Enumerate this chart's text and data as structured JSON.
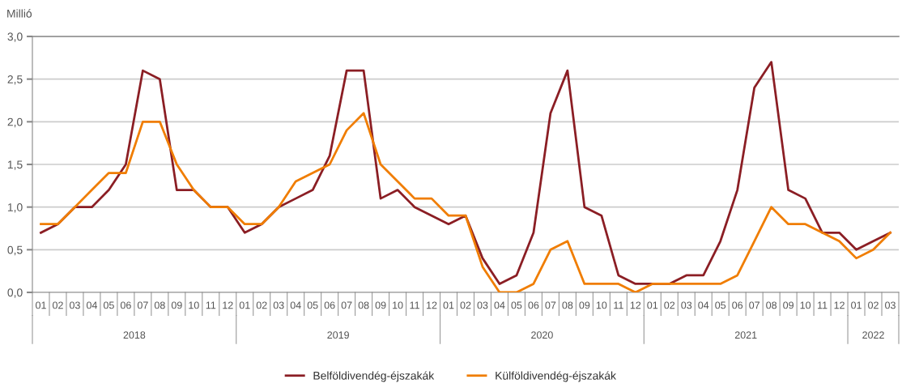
{
  "chart_data": {
    "type": "line",
    "ylabel": "Millió",
    "categories": [
      "01",
      "02",
      "03",
      "04",
      "05",
      "06",
      "07",
      "08",
      "09",
      "10",
      "11",
      "12",
      "01",
      "02",
      "03",
      "04",
      "05",
      "06",
      "07",
      "08",
      "09",
      "10",
      "11",
      "12",
      "01",
      "02",
      "03",
      "04",
      "05",
      "06",
      "07",
      "08",
      "09",
      "10",
      "11",
      "12",
      "01",
      "02",
      "03",
      "04",
      "05",
      "06",
      "07",
      "08",
      "09",
      "10",
      "11",
      "12",
      "01",
      "02",
      "03"
    ],
    "annotations": [
      "2018",
      "2019",
      "2020",
      "2021",
      "2022"
    ],
    "series": [
      {
        "name": "Belföldivendég-éjszakák",
        "color": "#8b1e24",
        "values": [
          0.7,
          0.8,
          1.0,
          1.0,
          1.2,
          1.5,
          2.6,
          2.5,
          1.2,
          1.2,
          1.0,
          1.0,
          0.7,
          0.8,
          1.0,
          1.1,
          1.2,
          1.6,
          2.6,
          2.6,
          1.1,
          1.2,
          1.0,
          0.9,
          0.8,
          0.9,
          0.4,
          0.1,
          0.2,
          0.7,
          2.1,
          2.6,
          1.0,
          0.9,
          0.2,
          0.1,
          0.1,
          0.1,
          0.2,
          0.2,
          0.6,
          1.2,
          2.4,
          2.7,
          1.2,
          1.1,
          0.7,
          0.7,
          0.5,
          0.6,
          0.7
        ]
      },
      {
        "name": "Külföldivendég-éjszakák",
        "color": "#f07d00",
        "values": [
          0.8,
          0.8,
          1.0,
          1.2,
          1.4,
          1.4,
          2.0,
          2.0,
          1.5,
          1.2,
          1.0,
          1.0,
          0.8,
          0.8,
          1.0,
          1.3,
          1.4,
          1.5,
          1.9,
          2.1,
          1.5,
          1.3,
          1.1,
          1.1,
          0.9,
          0.9,
          0.3,
          0.0,
          0.0,
          0.1,
          0.5,
          0.6,
          0.1,
          0.1,
          0.1,
          0.0,
          0.1,
          0.1,
          0.1,
          0.1,
          0.1,
          0.2,
          0.6,
          1.0,
          0.8,
          0.8,
          0.7,
          0.6,
          0.4,
          0.5,
          0.7
        ]
      }
    ],
    "ylim": [
      0,
      3
    ],
    "yticks": [
      {
        "value": 0,
        "label": "0,0"
      },
      {
        "value": 0.5,
        "label": "0,5"
      },
      {
        "value": 1,
        "label": "1,0"
      },
      {
        "value": 1.5,
        "label": "1,5"
      },
      {
        "value": 2,
        "label": "2,0"
      },
      {
        "value": 2.5,
        "label": "2,5"
      },
      {
        "value": 3,
        "label": "3,0"
      }
    ],
    "grid": "y",
    "legend": "bottom",
    "marker": "none",
    "line_style": "solid"
  }
}
